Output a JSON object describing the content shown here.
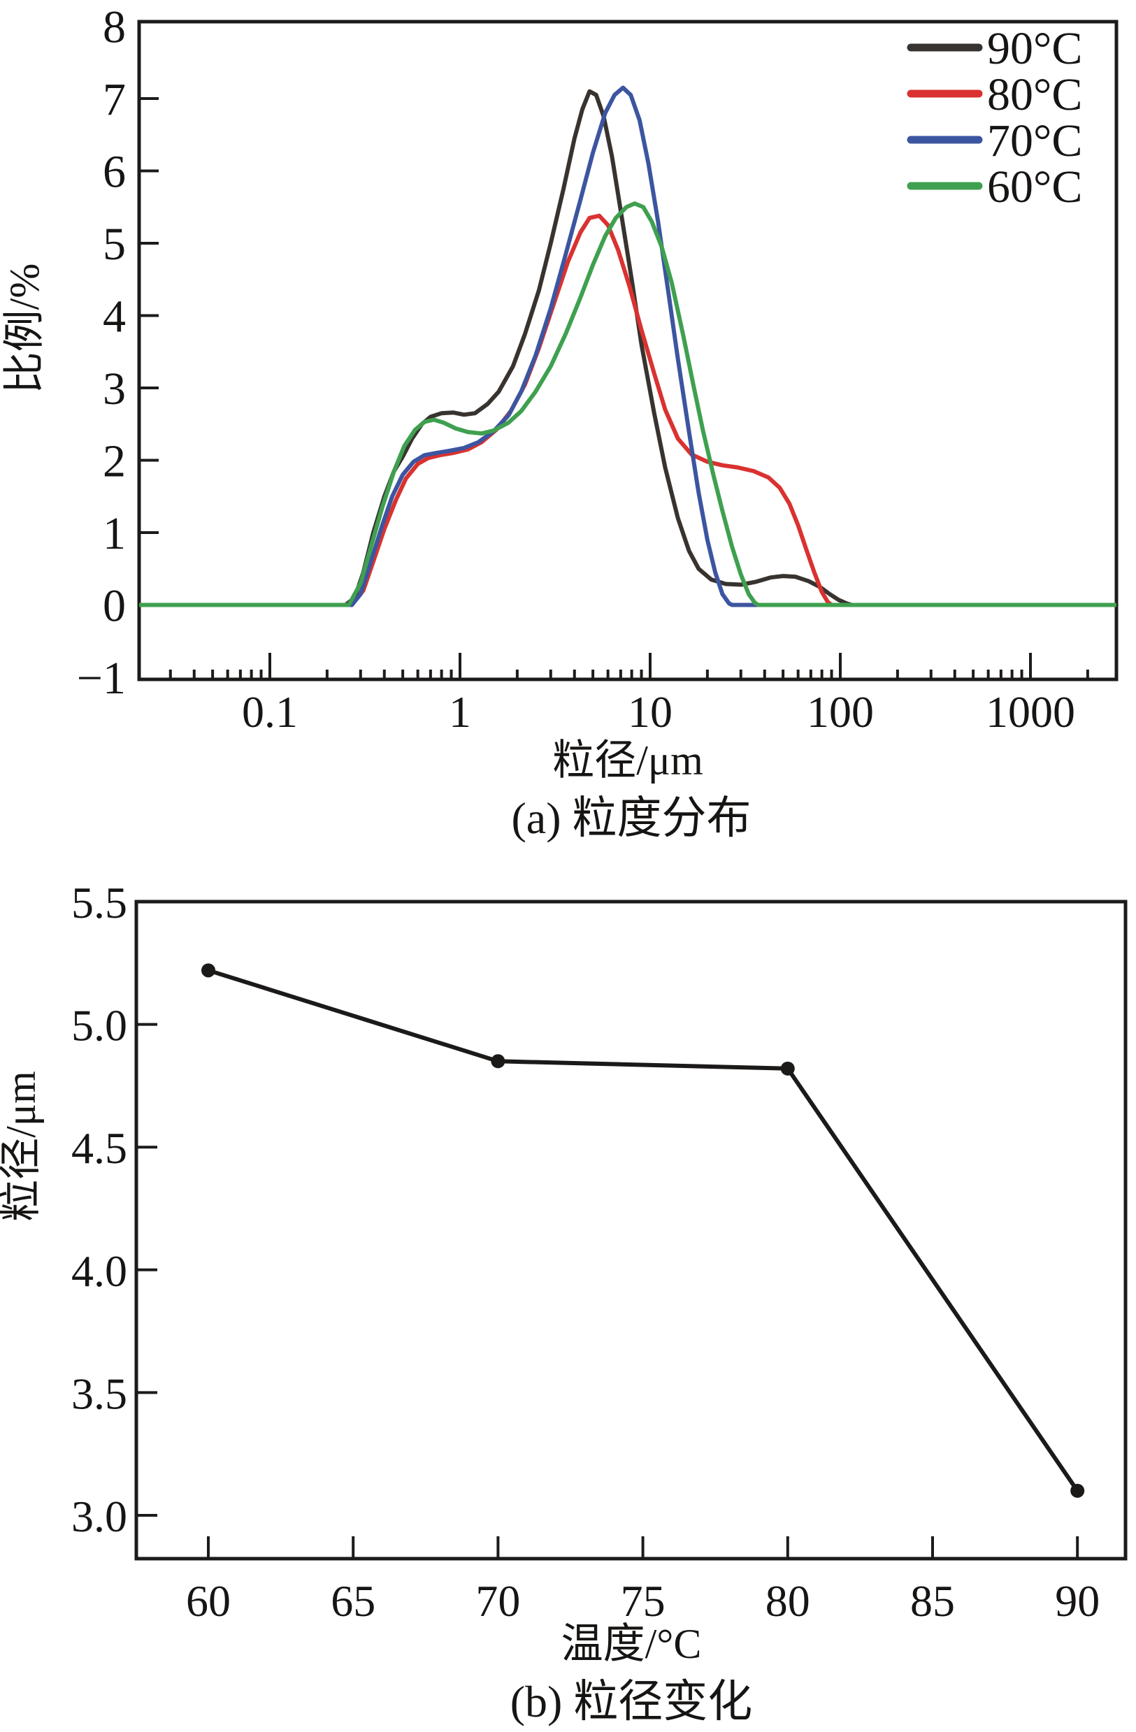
{
  "page": {
    "background": "#ffffff",
    "ink_color": "#1d1b1a"
  },
  "chart_data": [
    {
      "id": "particle-size-distribution",
      "type": "line",
      "title": "(a) 粒度分布",
      "xlabel": "粒径/μm",
      "ylabel": "比例/%",
      "x_scale": "log",
      "xlim": [
        0.02,
        2840
      ],
      "ylim": [
        -1,
        8
      ],
      "grid": false,
      "legend_position": "top-right-inside",
      "x_ticks": [
        {
          "v": 0.1,
          "label": "0.1"
        },
        {
          "v": 1,
          "label": "1"
        },
        {
          "v": 10,
          "label": "10"
        },
        {
          "v": 100,
          "label": "100"
        },
        {
          "v": 1000,
          "label": "1000"
        }
      ],
      "y_ticks": [
        {
          "v": -1,
          "label": "−1"
        },
        {
          "v": 0,
          "label": "0"
        },
        {
          "v": 1,
          "label": "1"
        },
        {
          "v": 2,
          "label": "2"
        },
        {
          "v": 3,
          "label": "3"
        },
        {
          "v": 4,
          "label": "4"
        },
        {
          "v": 5,
          "label": "5"
        },
        {
          "v": 6,
          "label": "6"
        },
        {
          "v": 7,
          "label": "7"
        },
        {
          "v": 8,
          "label": "8"
        }
      ],
      "series": [
        {
          "name": "90°C",
          "color": "#38332f",
          "points": [
            [
              0.02,
              0
            ],
            [
              0.25,
              0
            ],
            [
              0.28,
              0.1
            ],
            [
              0.31,
              0.45
            ],
            [
              0.35,
              1.0
            ],
            [
              0.4,
              1.5
            ],
            [
              0.45,
              1.85
            ],
            [
              0.5,
              2.05
            ],
            [
              0.56,
              2.3
            ],
            [
              0.63,
              2.5
            ],
            [
              0.7,
              2.6
            ],
            [
              0.8,
              2.65
            ],
            [
              0.92,
              2.66
            ],
            [
              1.05,
              2.63
            ],
            [
              1.2,
              2.65
            ],
            [
              1.4,
              2.78
            ],
            [
              1.6,
              2.95
            ],
            [
              1.9,
              3.3
            ],
            [
              2.2,
              3.75
            ],
            [
              2.6,
              4.35
            ],
            [
              3.0,
              5.0
            ],
            [
              3.5,
              5.75
            ],
            [
              4.0,
              6.45
            ],
            [
              4.4,
              6.85
            ],
            [
              4.8,
              7.1
            ],
            [
              5.2,
              7.05
            ],
            [
              5.7,
              6.75
            ],
            [
              6.3,
              6.2
            ],
            [
              7.0,
              5.45
            ],
            [
              8.0,
              4.5
            ],
            [
              9.0,
              3.6
            ],
            [
              10.5,
              2.65
            ],
            [
              12,
              1.9
            ],
            [
              14,
              1.2
            ],
            [
              16,
              0.75
            ],
            [
              18,
              0.5
            ],
            [
              21,
              0.35
            ],
            [
              25,
              0.29
            ],
            [
              30,
              0.28
            ],
            [
              36,
              0.32
            ],
            [
              43,
              0.38
            ],
            [
              50,
              0.4
            ],
            [
              58,
              0.39
            ],
            [
              68,
              0.33
            ],
            [
              78,
              0.25
            ],
            [
              88,
              0.15
            ],
            [
              98,
              0.07
            ],
            [
              108,
              0.02
            ],
            [
              115,
              0
            ],
            [
              2800,
              0
            ]
          ]
        },
        {
          "name": "80°C",
          "color": "#d93230",
          "points": [
            [
              0.02,
              0
            ],
            [
              0.27,
              0
            ],
            [
              0.31,
              0.2
            ],
            [
              0.35,
              0.6
            ],
            [
              0.4,
              1.05
            ],
            [
              0.46,
              1.45
            ],
            [
              0.52,
              1.75
            ],
            [
              0.6,
              1.95
            ],
            [
              0.68,
              2.03
            ],
            [
              0.78,
              2.07
            ],
            [
              0.92,
              2.1
            ],
            [
              1.1,
              2.15
            ],
            [
              1.3,
              2.25
            ],
            [
              1.55,
              2.42
            ],
            [
              1.85,
              2.68
            ],
            [
              2.2,
              3.05
            ],
            [
              2.6,
              3.55
            ],
            [
              3.1,
              4.15
            ],
            [
              3.7,
              4.75
            ],
            [
              4.3,
              5.15
            ],
            [
              4.8,
              5.35
            ],
            [
              5.4,
              5.38
            ],
            [
              6.0,
              5.25
            ],
            [
              6.8,
              4.9
            ],
            [
              7.8,
              4.4
            ],
            [
              9.0,
              3.8
            ],
            [
              10.5,
              3.2
            ],
            [
              12,
              2.7
            ],
            [
              14,
              2.3
            ],
            [
              16.5,
              2.08
            ],
            [
              20,
              1.98
            ],
            [
              24,
              1.93
            ],
            [
              29,
              1.9
            ],
            [
              35,
              1.85
            ],
            [
              42,
              1.76
            ],
            [
              48,
              1.62
            ],
            [
              54,
              1.4
            ],
            [
              60,
              1.1
            ],
            [
              66,
              0.78
            ],
            [
              73,
              0.45
            ],
            [
              80,
              0.18
            ],
            [
              86,
              0.04
            ],
            [
              90,
              0
            ],
            [
              2800,
              0
            ]
          ]
        },
        {
          "name": "70°C",
          "color": "#3c55a0",
          "points": [
            [
              0.02,
              0
            ],
            [
              0.27,
              0
            ],
            [
              0.3,
              0.15
            ],
            [
              0.34,
              0.6
            ],
            [
              0.39,
              1.1
            ],
            [
              0.44,
              1.5
            ],
            [
              0.5,
              1.8
            ],
            [
              0.57,
              1.98
            ],
            [
              0.65,
              2.07
            ],
            [
              0.75,
              2.1
            ],
            [
              0.88,
              2.13
            ],
            [
              1.05,
              2.17
            ],
            [
              1.25,
              2.25
            ],
            [
              1.5,
              2.4
            ],
            [
              1.8,
              2.62
            ],
            [
              2.1,
              2.95
            ],
            [
              2.5,
              3.45
            ],
            [
              3.0,
              4.1
            ],
            [
              3.6,
              4.85
            ],
            [
              4.3,
              5.6
            ],
            [
              5.0,
              6.25
            ],
            [
              5.8,
              6.8
            ],
            [
              6.5,
              7.05
            ],
            [
              7.2,
              7.15
            ],
            [
              7.9,
              7.05
            ],
            [
              8.8,
              6.7
            ],
            [
              9.8,
              6.1
            ],
            [
              11,
              5.3
            ],
            [
              12.5,
              4.3
            ],
            [
              14,
              3.4
            ],
            [
              16,
              2.4
            ],
            [
              18,
              1.55
            ],
            [
              20,
              0.9
            ],
            [
              22,
              0.45
            ],
            [
              24,
              0.15
            ],
            [
              26,
              0.02
            ],
            [
              27,
              0
            ],
            [
              2800,
              0
            ]
          ]
        },
        {
          "name": "60°C",
          "color": "#3fa04f",
          "points": [
            [
              0.02,
              0
            ],
            [
              0.26,
              0
            ],
            [
              0.3,
              0.3
            ],
            [
              0.34,
              0.8
            ],
            [
              0.39,
              1.35
            ],
            [
              0.45,
              1.85
            ],
            [
              0.51,
              2.2
            ],
            [
              0.58,
              2.42
            ],
            [
              0.65,
              2.53
            ],
            [
              0.73,
              2.56
            ],
            [
              0.82,
              2.52
            ],
            [
              0.95,
              2.44
            ],
            [
              1.1,
              2.39
            ],
            [
              1.3,
              2.37
            ],
            [
              1.5,
              2.41
            ],
            [
              1.8,
              2.52
            ],
            [
              2.1,
              2.68
            ],
            [
              2.5,
              2.95
            ],
            [
              3.0,
              3.3
            ],
            [
              3.6,
              3.75
            ],
            [
              4.3,
              4.25
            ],
            [
              5.0,
              4.7
            ],
            [
              5.8,
              5.1
            ],
            [
              6.6,
              5.35
            ],
            [
              7.5,
              5.5
            ],
            [
              8.3,
              5.55
            ],
            [
              9.2,
              5.5
            ],
            [
              10.2,
              5.3
            ],
            [
              11.5,
              4.95
            ],
            [
              13,
              4.45
            ],
            [
              15,
              3.7
            ],
            [
              17,
              3.0
            ],
            [
              19,
              2.4
            ],
            [
              21.5,
              1.8
            ],
            [
              24,
              1.3
            ],
            [
              27,
              0.8
            ],
            [
              30,
              0.42
            ],
            [
              33,
              0.15
            ],
            [
              35.5,
              0.03
            ],
            [
              37,
              0
            ],
            [
              2800,
              0
            ]
          ]
        }
      ]
    },
    {
      "id": "particle-size-vs-temperature",
      "type": "line",
      "title": "(b) 粒径变化",
      "xlabel": "温度/°C",
      "ylabel": "粒径/μm",
      "x_scale": "linear",
      "xlim": [
        57.5,
        91.7
      ],
      "ylim": [
        2.82,
        5.5
      ],
      "grid": false,
      "marker": "filled-circle",
      "color": "#1c1a19",
      "x": [
        60,
        70,
        80,
        90
      ],
      "y": [
        5.22,
        4.85,
        4.82,
        3.1
      ],
      "x_ticks": [
        {
          "v": 60,
          "label": "60"
        },
        {
          "v": 65,
          "label": "65"
        },
        {
          "v": 70,
          "label": "70"
        },
        {
          "v": 75,
          "label": "75"
        },
        {
          "v": 80,
          "label": "80"
        },
        {
          "v": 85,
          "label": "85"
        },
        {
          "v": 90,
          "label": "90"
        }
      ],
      "y_ticks": [
        {
          "v": 5.5,
          "label": "5.5"
        },
        {
          "v": 5.0,
          "label": "5.0"
        },
        {
          "v": 4.5,
          "label": "4.5"
        },
        {
          "v": 4.0,
          "label": "4.0"
        },
        {
          "v": 3.5,
          "label": "3.5"
        },
        {
          "v": 3.0,
          "label": "3.0"
        }
      ]
    }
  ]
}
